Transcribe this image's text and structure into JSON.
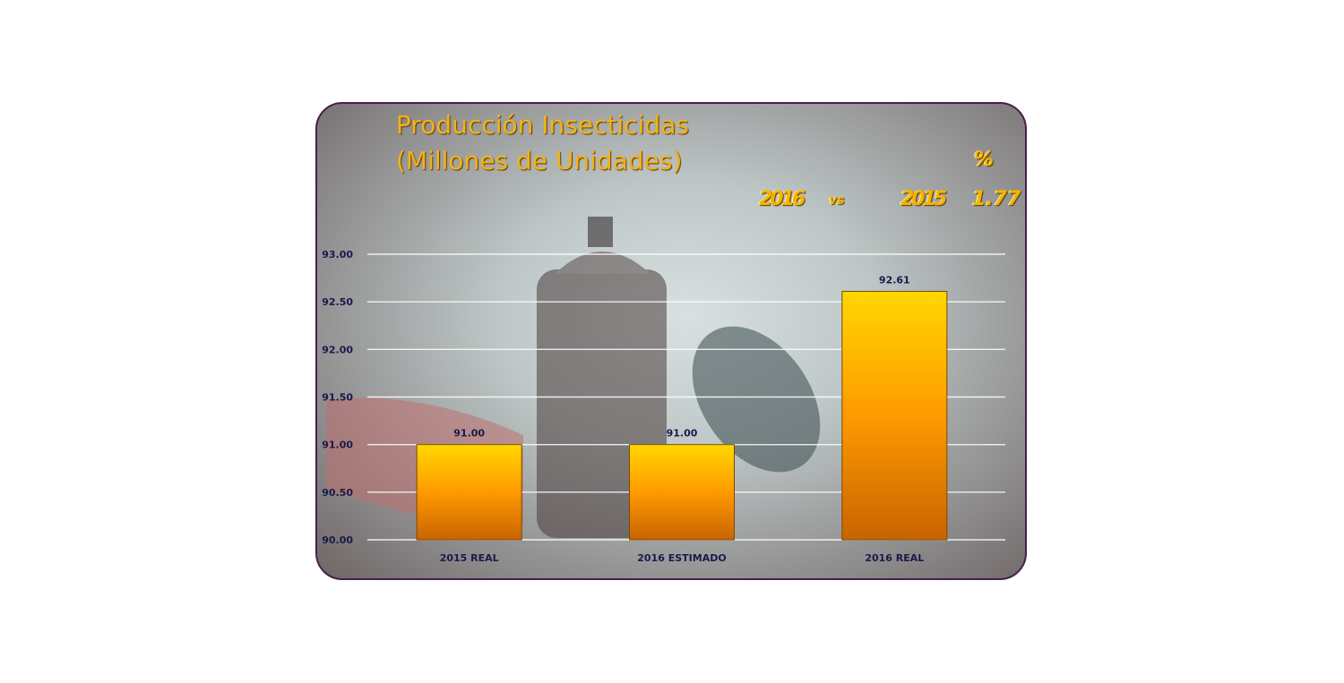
{
  "colors": {
    "frame": "#4a1e4a",
    "bar_top": "#ffd700",
    "bar_bottom": "#e07800",
    "axis_text": "#1a1a4a",
    "title_text": "#f3b21a"
  },
  "comparison": {
    "percent_symbol": "%",
    "year_a": "2016",
    "vs": "vs",
    "year_b": "2015",
    "change": "1.77"
  },
  "background_icons": [
    "spray-can-icon"
  ],
  "chart_data": {
    "type": "bar",
    "title_lines": [
      "Producción Insecticidas",
      "(Millones de Unidades)"
    ],
    "categories": [
      "2015 REAL",
      "2016 ESTIMADO",
      "2016 REAL"
    ],
    "values": [
      91.0,
      91.0,
      92.61
    ],
    "value_labels": [
      "91.00",
      "91.00",
      "92.61"
    ],
    "y_ticks": [
      "93.00",
      "92.50",
      "92.00",
      "91.50",
      "91.00",
      "90.50",
      "90.00"
    ],
    "ylim": [
      90,
      93
    ],
    "grid": true,
    "xlabel": "",
    "ylabel": ""
  }
}
